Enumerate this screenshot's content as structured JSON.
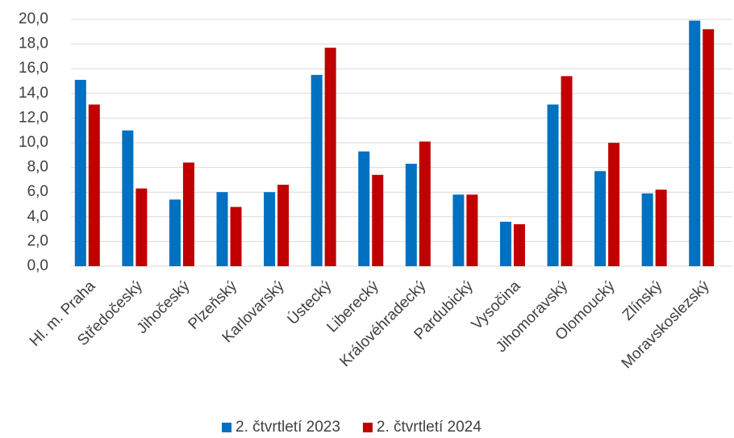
{
  "chart_data": {
    "type": "bar",
    "categories": [
      "Hl. m. Praha",
      "Středočeský",
      "Jihočeský",
      "Plzeňský",
      "Karlovarský",
      "Ústecký",
      "Liberecký",
      "Královéhradecký",
      "Pardubický",
      "Vysočina",
      "Jihomoravský",
      "Olomoucký",
      "Zlínský",
      "Moravskoslezský"
    ],
    "series": [
      {
        "name": "2. čtvrtletí 2023",
        "color": "#0070c0",
        "values": [
          15.1,
          11.0,
          5.4,
          6.0,
          6.0,
          15.5,
          9.3,
          8.3,
          5.8,
          3.6,
          13.1,
          7.7,
          5.9,
          19.9
        ]
      },
      {
        "name": "2. čtvrtletí 2024",
        "color": "#c00000",
        "values": [
          13.1,
          6.3,
          8.4,
          4.8,
          6.6,
          17.7,
          7.4,
          10.1,
          5.8,
          3.4,
          15.4,
          10.0,
          6.2,
          19.2
        ]
      }
    ],
    "ylim": [
      0,
      20
    ],
    "yticks": [
      {
        "value": 0,
        "label": "0,0"
      },
      {
        "value": 2,
        "label": "2,0"
      },
      {
        "value": 4,
        "label": "4,0"
      },
      {
        "value": 6,
        "label": "6,0"
      },
      {
        "value": 8,
        "label": "8,0"
      },
      {
        "value": 10,
        "label": "10,0"
      },
      {
        "value": 12,
        "label": "12,0"
      },
      {
        "value": 14,
        "label": "14,0"
      },
      {
        "value": 16,
        "label": "16,0"
      },
      {
        "value": 18,
        "label": "18,0"
      },
      {
        "value": 20,
        "label": "20,0"
      }
    ],
    "grid": true,
    "legend": "bottom"
  }
}
